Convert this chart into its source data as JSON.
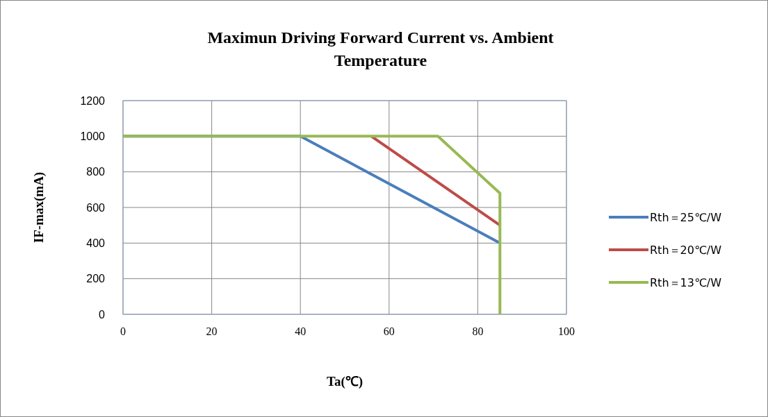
{
  "chart_data": {
    "type": "line",
    "title": "Maximun Driving Forward Current vs. Ambient Temperature",
    "xlabel": "Ta(℃)",
    "ylabel": "IF-max(mA)",
    "xlim": [
      0,
      100
    ],
    "xticks": [
      0,
      20,
      40,
      60,
      80,
      100
    ],
    "ylim": [
      0,
      1200
    ],
    "yticks": [
      0,
      200,
      400,
      600,
      800,
      1000,
      1200
    ],
    "grid": true,
    "legend": "right",
    "marker": "none",
    "line_style": "solid",
    "series": [
      {
        "name": "Rth＝25℃/W",
        "color": "#4a7ebb",
        "x": [
          0,
          40,
          85
        ],
        "values": [
          1000,
          1000,
          400
        ]
      },
      {
        "name": "Rth＝20℃/W",
        "color": "#be4b48",
        "x": [
          56,
          85
        ],
        "values": [
          1000,
          500
        ]
      },
      {
        "name": "Rth＝13℃/W",
        "color": "#98b954",
        "x": [
          0,
          71,
          85,
          85
        ],
        "values": [
          1000,
          1000,
          680,
          0
        ]
      }
    ]
  }
}
